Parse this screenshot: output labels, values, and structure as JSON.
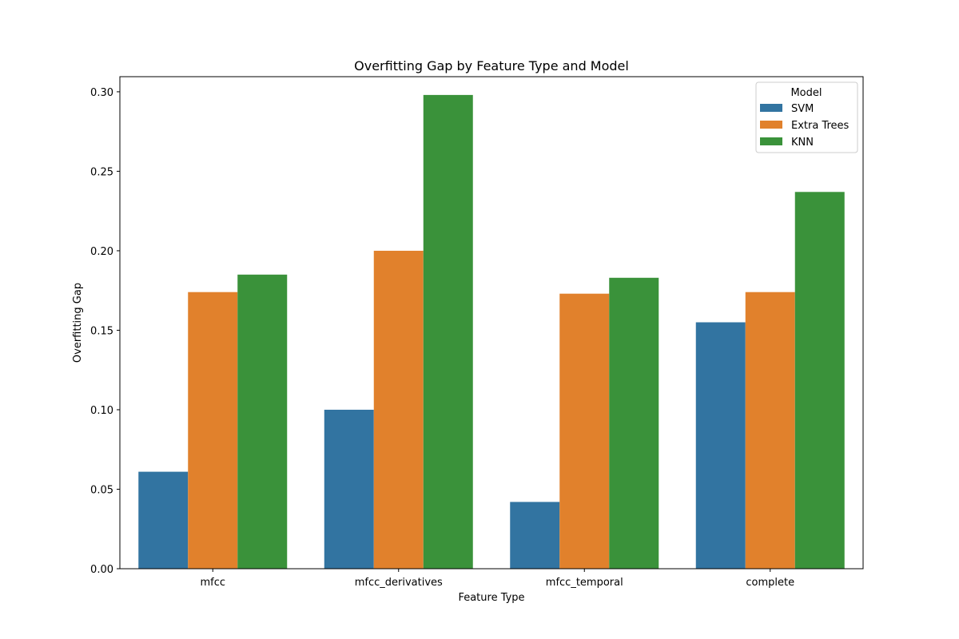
{
  "chart_data": {
    "type": "bar",
    "title": "Overfitting Gap by Feature Type and Model",
    "xlabel": "Feature Type",
    "ylabel": "Overfitting Gap",
    "categories": [
      "mfcc",
      "mfcc_derivatives",
      "mfcc_temporal",
      "complete"
    ],
    "series": [
      {
        "name": "SVM",
        "color": "#3274a1",
        "values": [
          0.061,
          0.1,
          0.042,
          0.155
        ]
      },
      {
        "name": "Extra Trees",
        "color": "#e1812c",
        "values": [
          0.174,
          0.2,
          0.173,
          0.174
        ]
      },
      {
        "name": "KNN",
        "color": "#3a923a",
        "values": [
          0.185,
          0.298,
          0.183,
          0.237
        ]
      }
    ],
    "ylim": [
      0,
      0.3095
    ],
    "yticks": [
      0.0,
      0.05,
      0.1,
      0.15,
      0.2,
      0.25,
      0.3
    ],
    "ytick_labels": [
      "0.00",
      "0.05",
      "0.10",
      "0.15",
      "0.20",
      "0.25",
      "0.30"
    ],
    "grid": false,
    "legend": {
      "title": "Model",
      "placement": "top-right"
    }
  }
}
